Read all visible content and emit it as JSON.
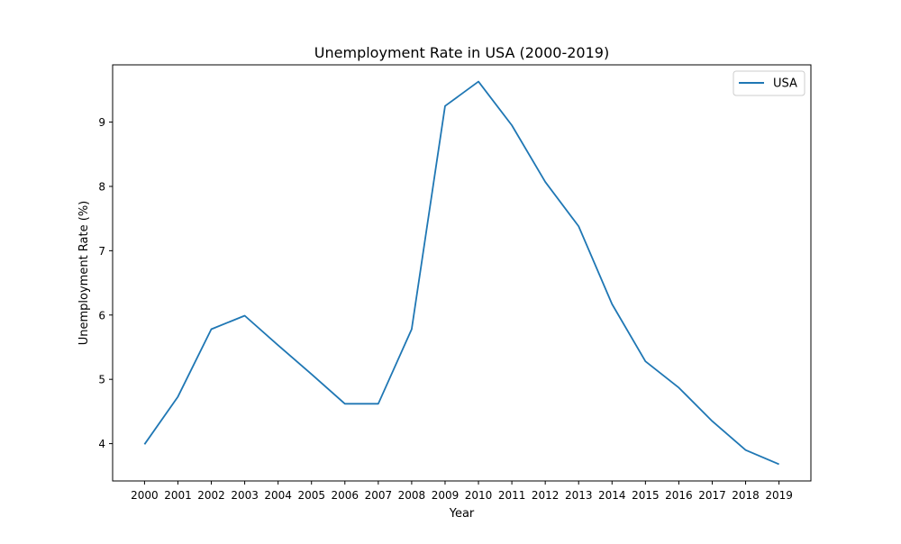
{
  "chart_data": {
    "type": "line",
    "title": "Unemployment Rate in USA (2000-2019)",
    "xlabel": "Year",
    "ylabel": "Unemployment Rate (%)",
    "x": [
      "2000",
      "2001",
      "2002",
      "2003",
      "2004",
      "2005",
      "2006",
      "2007",
      "2008",
      "2009",
      "2010",
      "2011",
      "2012",
      "2013",
      "2014",
      "2015",
      "2016",
      "2017",
      "2018",
      "2019"
    ],
    "series": [
      {
        "name": "USA",
        "color": "#1f77b4",
        "values": [
          3.99,
          4.73,
          5.78,
          5.99,
          5.53,
          5.08,
          4.62,
          4.62,
          5.78,
          9.25,
          9.63,
          8.95,
          8.07,
          7.38,
          6.17,
          5.28,
          4.87,
          4.35,
          3.9,
          3.68
        ]
      }
    ],
    "yticks": [
      4,
      5,
      6,
      7,
      8,
      9
    ],
    "ylim": [
      3.42,
      9.89
    ],
    "grid": false,
    "legend_position": "top-right"
  }
}
